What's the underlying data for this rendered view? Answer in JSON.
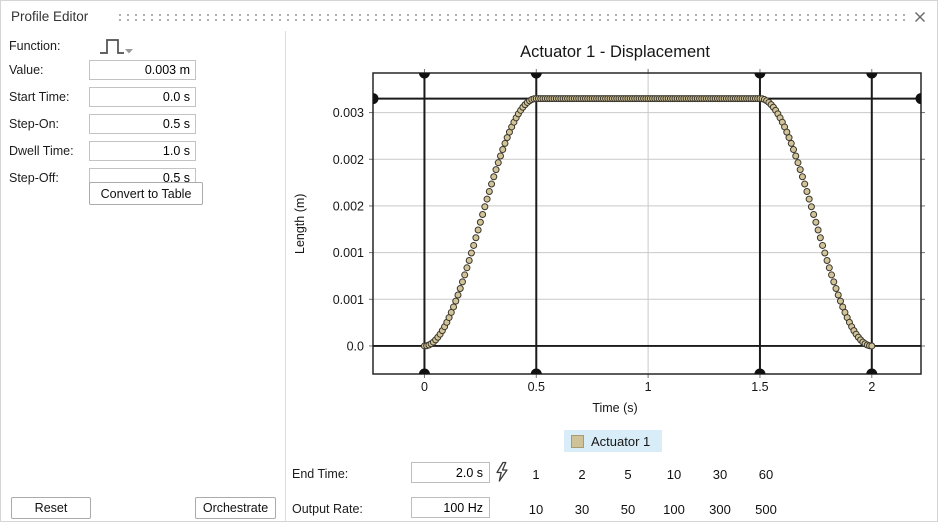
{
  "header": {
    "title": "Profile Editor",
    "close_icon": "x"
  },
  "form": {
    "function_label": "Function:",
    "function_icon": "pulse-waveform-dropdown",
    "fields": [
      {
        "label": "Value:",
        "value": "0.003 m"
      },
      {
        "label": "Start Time:",
        "value": "0.0 s"
      },
      {
        "label": "Step-On:",
        "value": "0.5 s"
      },
      {
        "label": "Dwell Time:",
        "value": "1.0 s"
      },
      {
        "label": "Step-Off:",
        "value": "0.5 s"
      }
    ],
    "convert_button": "Convert to Table"
  },
  "footer": {
    "reset_button": "Reset",
    "orchestrate_button": "Orchestrate"
  },
  "controls": {
    "end_time": {
      "label": "End Time:",
      "value": "2.0 s",
      "sync_icon": "lightning-bolt",
      "presets": [
        "1",
        "2",
        "5",
        "10",
        "30",
        "60"
      ]
    },
    "output_rate": {
      "label": "Output Rate:",
      "value": "100 Hz",
      "presets": [
        "10",
        "30",
        "50",
        "100",
        "300",
        "500"
      ]
    }
  },
  "chart_data": {
    "type": "scatter",
    "title": "Actuator 1 - Displacement",
    "xlabel": "Time (s)",
    "ylabel": "Length (m)",
    "x_range": [
      -0.23,
      2.22
    ],
    "y_range": [
      -0.00034,
      0.00331
    ],
    "x_ticks": [
      {
        "v": 0,
        "label": "0"
      },
      {
        "v": 0.5,
        "label": "0.5"
      },
      {
        "v": 1,
        "label": "1"
      },
      {
        "v": 1.5,
        "label": "1.5"
      },
      {
        "v": 2,
        "label": "2"
      }
    ],
    "y_ticks": [
      {
        "v": 0.0,
        "label": "0.0"
      },
      {
        "v": 0.000566,
        "label": "0.001"
      },
      {
        "v": 0.001132,
        "label": "0.001"
      },
      {
        "v": 0.001698,
        "label": "0.002"
      },
      {
        "v": 0.002264,
        "label": "0.002"
      },
      {
        "v": 0.00283,
        "label": "0.003"
      }
    ],
    "grid": true,
    "grid_color": "#c9c9c9",
    "handle_color": "#1a1a1a",
    "drag_handles": {
      "vertical_times_s": [
        0,
        0.5,
        1.5,
        2
      ],
      "value_line_m": 0.003,
      "zero_line_m": 0
    },
    "legend": {
      "label": "Actuator 1",
      "swatch_color": "#d0c298",
      "swatch_border": "#a89b73",
      "background": "#d9edf8",
      "position": "bottom"
    },
    "series": [
      {
        "name": "Actuator 1",
        "marker_fill": "#d2c498",
        "marker_stroke": "#39352b",
        "profile": {
          "shape": "pulse",
          "ramp": "half-cosine",
          "value_m": 0.003,
          "start_time_s": 0.0,
          "step_on_s": 0.5,
          "dwell_time_s": 1.0,
          "step_off_s": 0.5,
          "end_time_s": 2.0,
          "output_rate_hz": 100
        }
      }
    ]
  }
}
